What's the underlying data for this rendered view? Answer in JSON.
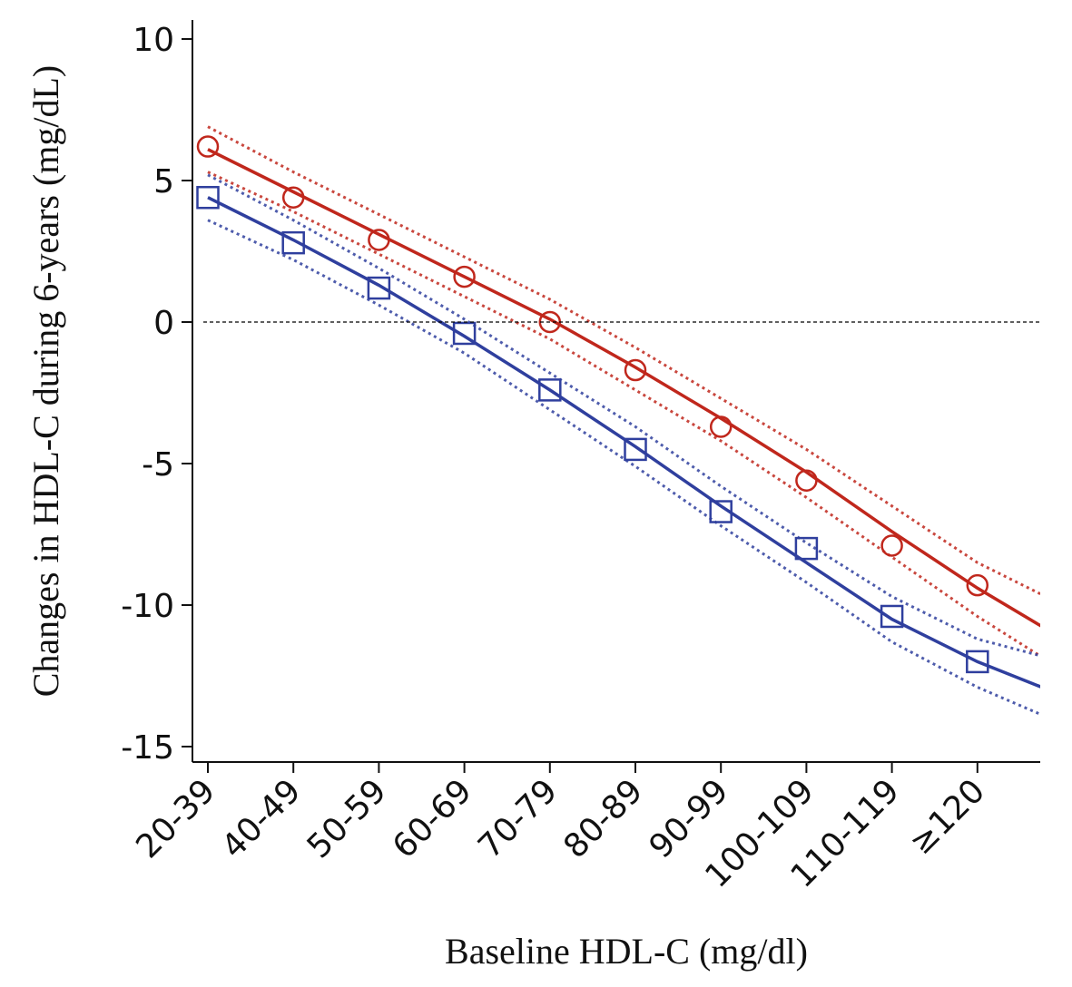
{
  "chart_data": {
    "type": "line",
    "title": "",
    "xlabel": "Baseline HDL-C (mg/dl)",
    "ylabel": "Changes in HDL-C during 6-years (mg/dL)",
    "categories": [
      "20-39",
      "40-49",
      "50-59",
      "60-69",
      "70-79",
      "80-89",
      "90-99",
      "100-109",
      "110-119",
      "≥120"
    ],
    "ylim": [
      -15,
      10
    ],
    "yticks": [
      10,
      5,
      0,
      -5,
      -10,
      -15
    ],
    "ytick_labels": [
      "10",
      "5",
      "0",
      "-5",
      "-10",
      "-15"
    ],
    "reference_line": {
      "y": 0,
      "style": "dashed",
      "color": "#000000"
    },
    "grid": false,
    "legend": "none",
    "series": [
      {
        "marker": "circle",
        "color": "#c0271c",
        "points": [
          6.2,
          4.4,
          2.9,
          1.6,
          0.0,
          -1.7,
          -3.7,
          -5.6,
          -7.9,
          -9.3
        ],
        "fit": [
          6.1,
          4.6,
          3.1,
          1.6,
          0.1,
          -1.6,
          -3.4,
          -5.3,
          -7.4,
          -9.4,
          -11.2
        ],
        "ci_upper": [
          6.9,
          5.3,
          3.8,
          2.3,
          0.8,
          -0.9,
          -2.7,
          -4.5,
          -6.5,
          -8.5,
          -10.0
        ],
        "ci_lower": [
          5.3,
          3.9,
          2.4,
          0.9,
          -0.6,
          -2.4,
          -4.2,
          -6.2,
          -8.3,
          -10.4,
          -12.3
        ]
      },
      {
        "marker": "square",
        "color": "#2f3f9e",
        "points": [
          4.4,
          2.8,
          1.2,
          -0.4,
          -2.4,
          -4.5,
          -6.7,
          -8.0,
          -10.4,
          -12.0
        ],
        "fit": [
          4.4,
          2.9,
          1.3,
          -0.5,
          -2.4,
          -4.4,
          -6.5,
          -8.5,
          -10.5,
          -12.0,
          -13.2
        ],
        "ci_upper": [
          5.2,
          3.6,
          1.9,
          0.1,
          -1.8,
          -3.7,
          -5.8,
          -7.8,
          -9.7,
          -11.2,
          -12.0
        ],
        "ci_lower": [
          3.6,
          2.2,
          0.6,
          -1.1,
          -3.1,
          -5.1,
          -7.2,
          -9.2,
          -11.3,
          -12.9,
          -14.2
        ]
      }
    ]
  }
}
